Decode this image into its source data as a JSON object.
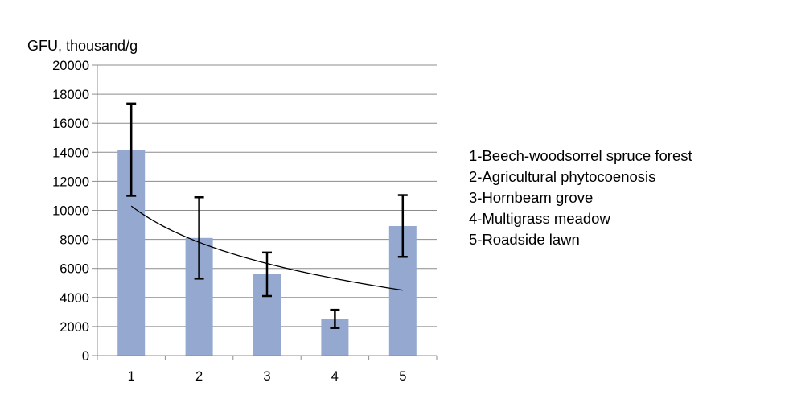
{
  "chart_data": {
    "type": "bar",
    "title": "",
    "xlabel": "",
    "ylabel": "GFU, thousand/g",
    "categories": [
      "1",
      "2",
      "3",
      "4",
      "5"
    ],
    "values": [
      14150,
      8100,
      5620,
      2540,
      8920
    ],
    "error_low": [
      11000,
      5300,
      4100,
      1900,
      6800
    ],
    "error_high": [
      17350,
      10900,
      7100,
      3150,
      11050
    ],
    "trendline": {
      "type": "logarithmic",
      "start": 10300,
      "end": 4500
    },
    "ylim": [
      0,
      20000
    ],
    "yticks": [
      0,
      2000,
      4000,
      6000,
      8000,
      10000,
      12000,
      14000,
      16000,
      18000,
      20000
    ],
    "grid": true,
    "legend": {
      "placement": "right",
      "entries": [
        "1-Beech-woodsorrel spruce forest",
        "2-Agricultural phytocoenosis",
        "3-Hornbeam grove",
        "4-Multigrass meadow",
        "5-Roadside lawn"
      ]
    },
    "colors": {
      "bar": "#94a8d0",
      "error_bar": "#000000",
      "trendline": "#000000",
      "grid": "#8c8c8c"
    }
  }
}
